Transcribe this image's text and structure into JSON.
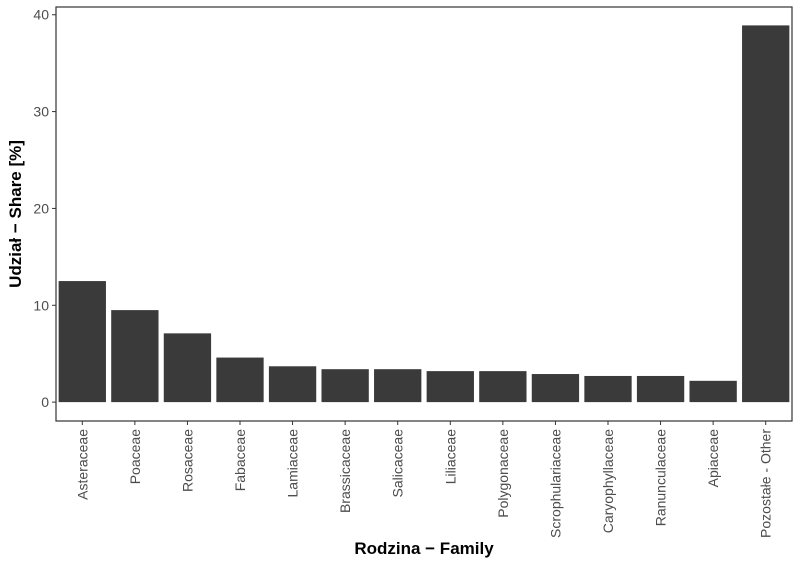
{
  "chart_data": {
    "type": "bar",
    "title": "",
    "xlabel": "Rodzina − Family",
    "ylabel": "Udział − Share [%]",
    "categories": [
      "Asteraceae",
      "Poaceae",
      "Rosaceae",
      "Fabaceae",
      "Lamiaceae",
      "Brassicaceae",
      "Salicaceae",
      "Liliaceae",
      "Polygonaceae",
      "Scrophulariaceae",
      "Caryophyllaceae",
      "Ranunculaceae",
      "Apiaceae",
      "Pozostałe - Other"
    ],
    "values": [
      12.5,
      9.5,
      7.1,
      4.6,
      3.7,
      3.4,
      3.4,
      3.2,
      3.2,
      2.9,
      2.7,
      2.7,
      2.2,
      38.9
    ],
    "ylim": [
      -1.95,
      40.8
    ],
    "yticks": [
      0,
      10,
      20,
      30,
      40
    ],
    "ytick_labels": [
      "0",
      "10",
      "20",
      "30",
      "40"
    ],
    "grid": false,
    "legend": "none",
    "bar_color": "#3a3a3a"
  }
}
